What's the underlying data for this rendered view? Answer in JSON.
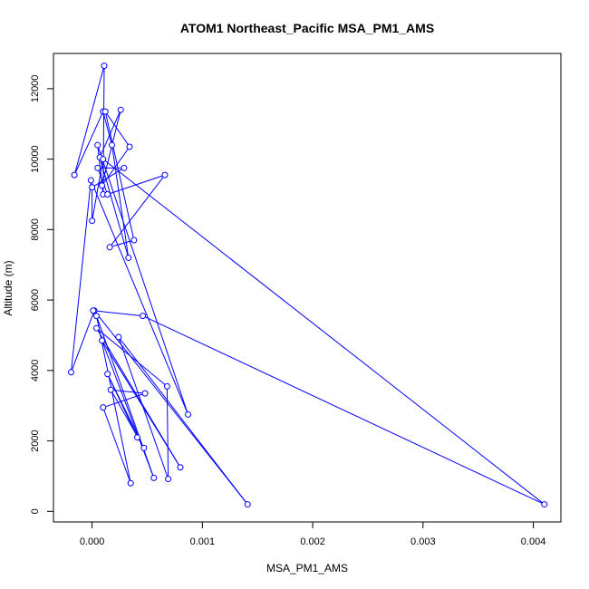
{
  "chart_data": {
    "type": "line",
    "title": "ATOM1 Northeast_Pacific MSA_PM1_AMS",
    "xlabel": "MSA_PM1_AMS",
    "ylabel": "Altitude (m)",
    "xlim": [
      -0.00035,
      0.00425
    ],
    "ylim": [
      -300,
      13000
    ],
    "x_ticks": [
      0,
      0.001,
      0.002,
      0.003,
      0.004
    ],
    "x_tick_labels": [
      "0.000",
      "0.001",
      "0.002",
      "0.003",
      "0.004"
    ],
    "y_ticks": [
      0,
      2000,
      4000,
      6000,
      8000,
      10000,
      12000
    ],
    "y_tick_labels": [
      "0",
      "2000",
      "4000",
      "6000",
      "8000",
      "10000",
      "12000"
    ],
    "series_color": "#0000ff",
    "markers": "open-circle",
    "grid": false,
    "legend": "none",
    "points": [
      {
        "x": 0.00041,
        "y": 2100
      },
      {
        "x": 0.00014,
        "y": 3900
      },
      {
        "x": 0.00047,
        "y": 1800
      },
      {
        "x": 0.00017,
        "y": 3450
      },
      {
        "x": 0.00048,
        "y": 3350
      },
      {
        "x": 0.0001,
        "y": 2950
      },
      {
        "x": 0.00035,
        "y": 800
      },
      {
        "x": 4e-05,
        "y": 5550
      },
      {
        "x": 0.00056,
        "y": 950
      },
      {
        "x": 9e-05,
        "y": 4850
      },
      {
        "x": 0.0008,
        "y": 1250
      },
      {
        "x": 4e-05,
        "y": 5200
      },
      {
        "x": 0.00068,
        "y": 3550
      },
      {
        "x": 0.00069,
        "y": 920
      },
      {
        "x": 0.00024,
        "y": 4950
      },
      {
        "x": 0.00141,
        "y": 200
      },
      {
        "x": 2e-05,
        "y": 5700
      },
      {
        "x": -0.00019,
        "y": 3950
      },
      {
        "x": -1e-05,
        "y": 9400
      },
      {
        "x": 0.00087,
        "y": 2750
      },
      {
        "x": 5e-05,
        "y": 10400
      },
      {
        "x": 0.0001,
        "y": 9000
      },
      {
        "x": 0.00011,
        "y": 12650
      },
      {
        "x": -0.00016,
        "y": 9550
      },
      {
        "x": 0.0001,
        "y": 11350
      },
      {
        "x": 0.00018,
        "y": 10400
      },
      {
        "x": 0.00033,
        "y": 7200
      },
      {
        "x": 7e-05,
        "y": 10050
      },
      {
        "x": 0.00026,
        "y": 11400
      },
      {
        "x": 9e-05,
        "y": 9250
      },
      {
        "x": 0.00034,
        "y": 10350
      },
      {
        "x": 0.00012,
        "y": 11350
      },
      {
        "x": 0.00038,
        "y": 7700
      },
      {
        "x": 0.00016,
        "y": 7500
      },
      {
        "x": 0.00066,
        "y": 9550
      },
      {
        "x": 0.00014,
        "y": 9000
      },
      {
        "x": 5e-05,
        "y": 9750
      },
      {
        "x": 0.00029,
        "y": 9750
      },
      {
        "x": 0.0,
        "y": 9200
      },
      {
        "x": 0.0,
        "y": 8250
      },
      {
        "x": 0.0001,
        "y": 10000
      },
      {
        "x": 0.0041,
        "y": 200
      },
      {
        "x": 0.00046,
        "y": 5550
      },
      {
        "x": 1e-05,
        "y": 5700
      }
    ]
  }
}
